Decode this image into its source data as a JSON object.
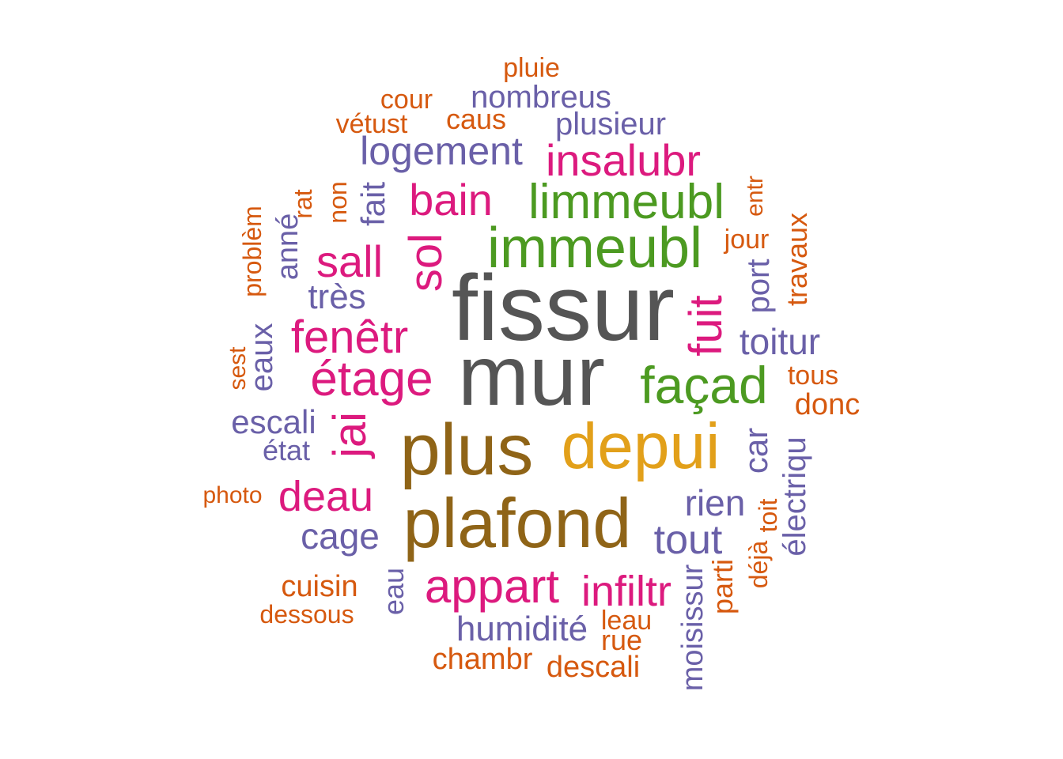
{
  "colors": {
    "gray": "#555555",
    "brown": "#8f6417",
    "gold": "#e2a01a",
    "green": "#4c9a21",
    "magenta": "#dc1a7e",
    "purple": "#6a60a8",
    "orange": "#d6590f"
  },
  "words": [
    {
      "text": "fissur",
      "color": "gray"
    },
    {
      "text": "mur",
      "color": "gray"
    },
    {
      "text": "plus",
      "color": "brown"
    },
    {
      "text": "plafond",
      "color": "brown"
    },
    {
      "text": "depui",
      "color": "gold"
    },
    {
      "text": "immeubl",
      "color": "green"
    },
    {
      "text": "limmeubl",
      "color": "green"
    },
    {
      "text": "façad",
      "color": "green"
    },
    {
      "text": "insalubr",
      "color": "magenta"
    },
    {
      "text": "bain",
      "color": "magenta"
    },
    {
      "text": "sol",
      "color": "magenta"
    },
    {
      "text": "sall",
      "color": "magenta"
    },
    {
      "text": "fenêtr",
      "color": "magenta"
    },
    {
      "text": "étage",
      "color": "magenta"
    },
    {
      "text": "fuit",
      "color": "magenta"
    },
    {
      "text": "jai",
      "color": "magenta"
    },
    {
      "text": "deau",
      "color": "magenta"
    },
    {
      "text": "appart",
      "color": "magenta"
    },
    {
      "text": "infiltr",
      "color": "magenta"
    },
    {
      "text": "logement",
      "color": "purple"
    },
    {
      "text": "nombreus",
      "color": "purple"
    },
    {
      "text": "plusieur",
      "color": "purple"
    },
    {
      "text": "très",
      "color": "purple"
    },
    {
      "text": "fait",
      "color": "purple"
    },
    {
      "text": "anné",
      "color": "purple"
    },
    {
      "text": "eaux",
      "color": "purple"
    },
    {
      "text": "escali",
      "color": "purple"
    },
    {
      "text": "état",
      "color": "purple"
    },
    {
      "text": "toitur",
      "color": "purple"
    },
    {
      "text": "port",
      "color": "purple"
    },
    {
      "text": "car",
      "color": "purple"
    },
    {
      "text": "rien",
      "color": "purple"
    },
    {
      "text": "tout",
      "color": "purple"
    },
    {
      "text": "cage",
      "color": "purple"
    },
    {
      "text": "électriqu",
      "color": "purple"
    },
    {
      "text": "eau",
      "color": "purple"
    },
    {
      "text": "humidité",
      "color": "purple"
    },
    {
      "text": "moisissur",
      "color": "purple"
    },
    {
      "text": "pluie",
      "color": "orange"
    },
    {
      "text": "cour",
      "color": "orange"
    },
    {
      "text": "caus",
      "color": "orange"
    },
    {
      "text": "vétust",
      "color": "orange"
    },
    {
      "text": "rat",
      "color": "orange"
    },
    {
      "text": "non",
      "color": "orange"
    },
    {
      "text": "problèm",
      "color": "orange"
    },
    {
      "text": "sest",
      "color": "orange"
    },
    {
      "text": "entr",
      "color": "orange"
    },
    {
      "text": "jour",
      "color": "orange"
    },
    {
      "text": "travaux",
      "color": "orange"
    },
    {
      "text": "tous",
      "color": "orange"
    },
    {
      "text": "donc",
      "color": "orange"
    },
    {
      "text": "photo",
      "color": "orange"
    },
    {
      "text": "toit",
      "color": "orange"
    },
    {
      "text": "déjà",
      "color": "orange"
    },
    {
      "text": "parti",
      "color": "orange"
    },
    {
      "text": "leau",
      "color": "orange"
    },
    {
      "text": "rue",
      "color": "orange"
    },
    {
      "text": "cuisin",
      "color": "orange"
    },
    {
      "text": "dessous",
      "color": "orange"
    },
    {
      "text": "chambr",
      "color": "orange"
    },
    {
      "text": "descali",
      "color": "orange"
    }
  ]
}
